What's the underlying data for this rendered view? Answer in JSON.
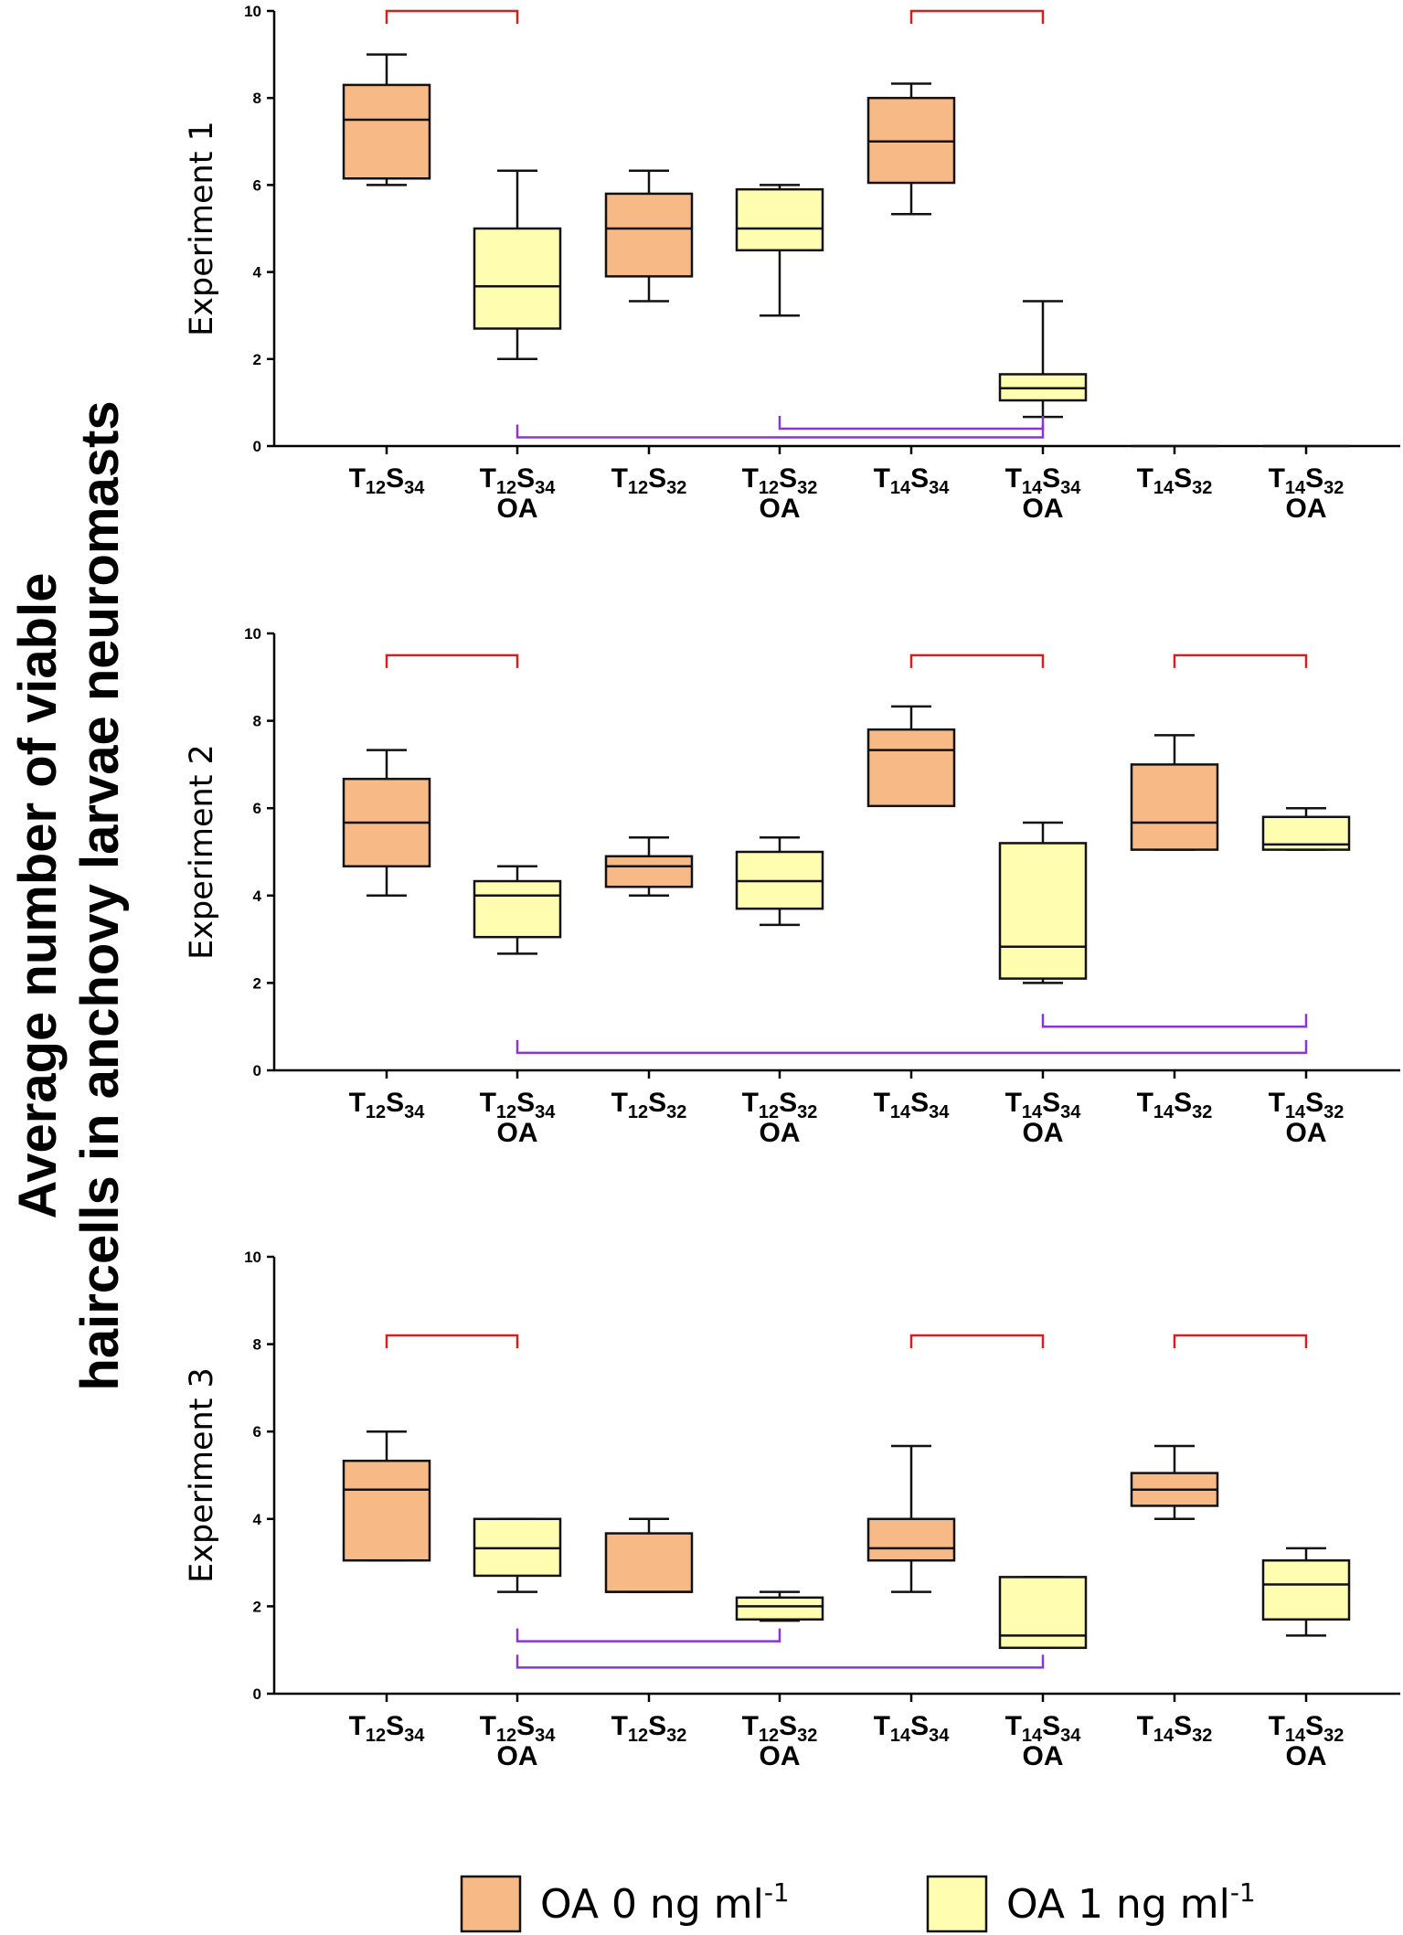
{
  "figure": {
    "y_axis_title_line1": "Average number of viable",
    "y_axis_title_line2": "haircells in anchovy larvae neuromasts"
  },
  "colors": {
    "oa0_fill": "#f7b985",
    "oa1_fill": "#fffdb0",
    "box_stroke": "#111111",
    "bracket_red": "#d42020",
    "bracket_purple": "#8a35d8"
  },
  "legend": [
    {
      "label": "OA  0 ng ml",
      "superscript": "-1",
      "group": "oa0"
    },
    {
      "label": "OA  1 ng ml",
      "superscript": "-1",
      "group": "oa1"
    }
  ],
  "categories": [
    {
      "main": "T",
      "t": "12",
      "mid": "S",
      "s": "34",
      "oa": "",
      "group": "oa0"
    },
    {
      "main": "T",
      "t": "12",
      "mid": "S",
      "s": "34",
      "oa": "OA",
      "group": "oa1"
    },
    {
      "main": "T",
      "t": "12",
      "mid": "S",
      "s": "32",
      "oa": "",
      "group": "oa0"
    },
    {
      "main": "T",
      "t": "12",
      "mid": "S",
      "s": "32",
      "oa": "OA",
      "group": "oa1"
    },
    {
      "main": "T",
      "t": "14",
      "mid": "S",
      "s": "34",
      "oa": "",
      "group": "oa0"
    },
    {
      "main": "T",
      "t": "14",
      "mid": "S",
      "s": "34",
      "oa": "OA",
      "group": "oa1"
    },
    {
      "main": "T",
      "t": "14",
      "mid": "S",
      "s": "32",
      "oa": "",
      "group": "oa0"
    },
    {
      "main": "T",
      "t": "14",
      "mid": "S",
      "s": "32",
      "oa": "OA",
      "group": "oa1"
    }
  ],
  "chart_data": [
    {
      "type": "boxplot",
      "title": "Experiment 1",
      "ylim": [
        0,
        10
      ],
      "yticks": [
        "0",
        "2",
        "4",
        "6",
        "8",
        "10"
      ],
      "boxes": [
        {
          "min": 6.0,
          "q1": 6.15,
          "median": 7.5,
          "q3": 8.3,
          "max": 9.0
        },
        {
          "min": 2.0,
          "q1": 2.7,
          "median": 3.67,
          "q3": 5.0,
          "max": 6.33
        },
        {
          "min": 3.33,
          "q1": 3.9,
          "median": 5.0,
          "q3": 5.8,
          "max": 6.33
        },
        {
          "min": 3.0,
          "q1": 4.5,
          "median": 5.0,
          "q3": 5.9,
          "max": 6.0
        },
        {
          "min": 5.33,
          "q1": 6.05,
          "median": 7.0,
          "q3": 8.0,
          "max": 8.33
        },
        {
          "min": 0.67,
          "q1": 1.05,
          "median": 1.33,
          "q3": 1.65,
          "max": 3.33
        },
        {
          "min": 0,
          "q1": 0,
          "median": 0,
          "q3": 0,
          "max": 0
        },
        {
          "min": 0,
          "q1": 0,
          "median": 0,
          "q3": 0,
          "max": 0
        }
      ],
      "red_brackets": [
        {
          "from": 0,
          "to": 1,
          "y": 10.0
        },
        {
          "from": 4,
          "to": 5,
          "y": 10.0
        }
      ],
      "purple_brackets": [
        {
          "from": 3,
          "to": 5,
          "y": 0.4
        },
        {
          "from": 1,
          "to": 5,
          "y": 0.2
        }
      ]
    },
    {
      "type": "boxplot",
      "title": "Experiment 2",
      "ylim": [
        0,
        10
      ],
      "yticks": [
        "0",
        "2",
        "4",
        "6",
        "8",
        "10"
      ],
      "boxes": [
        {
          "min": 4.0,
          "q1": 4.67,
          "median": 5.67,
          "q3": 6.67,
          "max": 7.33
        },
        {
          "min": 2.67,
          "q1": 3.05,
          "median": 4.0,
          "q3": 4.33,
          "max": 4.67
        },
        {
          "min": 4.0,
          "q1": 4.2,
          "median": 4.67,
          "q3": 4.9,
          "max": 5.33
        },
        {
          "min": 3.33,
          "q1": 3.7,
          "median": 4.33,
          "q3": 5.0,
          "max": 5.33
        },
        {
          "min": 6.05,
          "q1": 6.05,
          "median": 7.33,
          "q3": 7.8,
          "max": 8.33
        },
        {
          "min": 2.0,
          "q1": 2.1,
          "median": 2.83,
          "q3": 5.2,
          "max": 5.67
        },
        {
          "min": 5.05,
          "q1": 5.05,
          "median": 5.67,
          "q3": 7.0,
          "max": 7.67
        },
        {
          "min": 5.05,
          "q1": 5.05,
          "median": 5.17,
          "q3": 5.8,
          "max": 6.0
        }
      ],
      "red_brackets": [
        {
          "from": 0,
          "to": 1,
          "y": 9.5
        },
        {
          "from": 4,
          "to": 5,
          "y": 9.5
        },
        {
          "from": 6,
          "to": 7,
          "y": 9.5
        }
      ],
      "purple_brackets": [
        {
          "from": 5,
          "to": 7,
          "y": 1.0
        },
        {
          "from": 1,
          "to": 7,
          "y": 0.4
        }
      ]
    },
    {
      "type": "boxplot",
      "title": "Experiment 3",
      "ylim": [
        0,
        10
      ],
      "yticks": [
        "0",
        "2",
        "4",
        "6",
        "8",
        "10"
      ],
      "boxes": [
        {
          "min": 3.05,
          "q1": 3.05,
          "median": 4.67,
          "q3": 5.33,
          "max": 6.0
        },
        {
          "min": 2.33,
          "q1": 2.7,
          "median": 3.33,
          "q3": 4.0,
          "max": 4.0
        },
        {
          "min": 2.33,
          "q1": 2.33,
          "median": 2.33,
          "q3": 3.67,
          "max": 4.0
        },
        {
          "min": 1.67,
          "q1": 1.7,
          "median": 2.0,
          "q3": 2.2,
          "max": 2.33
        },
        {
          "min": 2.33,
          "q1": 3.05,
          "median": 3.33,
          "q3": 4.0,
          "max": 5.67
        },
        {
          "min": 1.05,
          "q1": 1.05,
          "median": 1.33,
          "q3": 2.67,
          "max": 2.67
        },
        {
          "min": 4.0,
          "q1": 4.3,
          "median": 4.67,
          "q3": 5.05,
          "max": 5.67
        },
        {
          "min": 1.33,
          "q1": 1.7,
          "median": 2.5,
          "q3": 3.05,
          "max": 3.33
        }
      ],
      "red_brackets": [
        {
          "from": 0,
          "to": 1,
          "y": 8.2
        },
        {
          "from": 4,
          "to": 5,
          "y": 8.2
        },
        {
          "from": 6,
          "to": 7,
          "y": 8.2
        }
      ],
      "purple_brackets": [
        {
          "from": 1,
          "to": 3,
          "y": 1.2
        },
        {
          "from": 1,
          "to": 5,
          "y": 0.6
        }
      ]
    }
  ]
}
